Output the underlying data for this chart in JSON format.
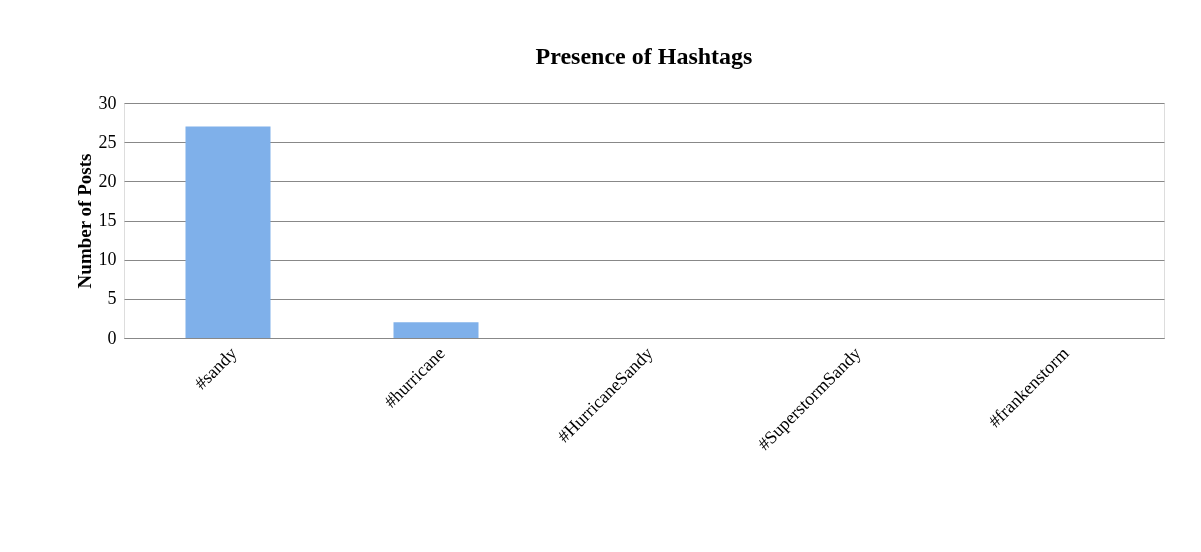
{
  "chart_data": {
    "type": "bar",
    "title": "Presence of Hashtags",
    "ylabel": "Number of Posts",
    "categories": [
      "#sandy",
      "#hurricane",
      "#HurricaneSandy",
      "#SuperstormSandy",
      "#frankenstorm"
    ],
    "values": [
      27,
      2,
      0,
      0,
      0
    ],
    "color": "#7fb0ea",
    "ylim": [
      0,
      30
    ],
    "yticks": [
      0,
      5,
      10,
      15,
      20,
      25,
      30
    ],
    "grid": "y"
  }
}
